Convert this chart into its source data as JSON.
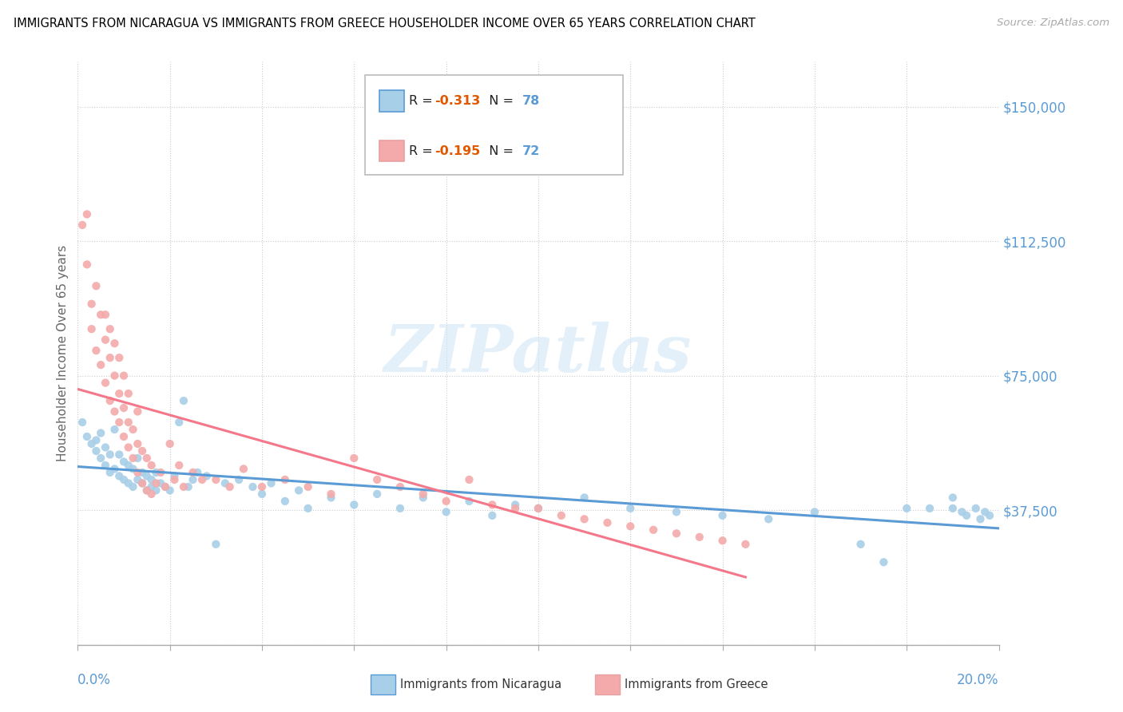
{
  "title": "IMMIGRANTS FROM NICARAGUA VS IMMIGRANTS FROM GREECE HOUSEHOLDER INCOME OVER 65 YEARS CORRELATION CHART",
  "source": "Source: ZipAtlas.com",
  "ylabel": "Householder Income Over 65 years",
  "xlim": [
    0.0,
    0.2
  ],
  "ylim": [
    0,
    162500
  ],
  "ytick_vals": [
    0,
    37500,
    75000,
    112500,
    150000
  ],
  "ytick_labels": [
    "",
    "$37,500",
    "$75,000",
    "$112,500",
    "$150,000"
  ],
  "color_nicaragua": "#a8cfe8",
  "color_greece": "#f4aaaa",
  "color_nicaragua_line": "#5b9bd5",
  "color_greece_line": "#f4778a",
  "color_axis": "#5b9bd5",
  "watermark_text": "ZIPatlas",
  "nicaragua_x": [
    0.001,
    0.002,
    0.003,
    0.004,
    0.004,
    0.005,
    0.005,
    0.006,
    0.006,
    0.007,
    0.007,
    0.008,
    0.008,
    0.009,
    0.009,
    0.01,
    0.01,
    0.011,
    0.011,
    0.012,
    0.012,
    0.013,
    0.013,
    0.014,
    0.014,
    0.015,
    0.015,
    0.016,
    0.016,
    0.017,
    0.017,
    0.018,
    0.019,
    0.02,
    0.021,
    0.022,
    0.023,
    0.024,
    0.025,
    0.026,
    0.028,
    0.03,
    0.032,
    0.035,
    0.038,
    0.04,
    0.042,
    0.045,
    0.048,
    0.05,
    0.055,
    0.06,
    0.065,
    0.07,
    0.075,
    0.08,
    0.085,
    0.09,
    0.095,
    0.1,
    0.11,
    0.12,
    0.13,
    0.14,
    0.15,
    0.16,
    0.17,
    0.175,
    0.18,
    0.185,
    0.19,
    0.19,
    0.192,
    0.193,
    0.195,
    0.196,
    0.197,
    0.198
  ],
  "nicaragua_y": [
    62000,
    58000,
    56000,
    57000,
    54000,
    52000,
    59000,
    50000,
    55000,
    48000,
    53000,
    49000,
    60000,
    47000,
    53000,
    46000,
    51000,
    45000,
    50000,
    44000,
    49000,
    46000,
    52000,
    45000,
    48000,
    43000,
    47000,
    44000,
    46000,
    43000,
    48000,
    45000,
    44000,
    43000,
    47000,
    62000,
    68000,
    44000,
    46000,
    48000,
    47000,
    28000,
    45000,
    46000,
    44000,
    42000,
    45000,
    40000,
    43000,
    38000,
    41000,
    39000,
    42000,
    38000,
    41000,
    37000,
    40000,
    36000,
    39000,
    38000,
    41000,
    38000,
    37000,
    36000,
    35000,
    37000,
    28000,
    23000,
    38000,
    38000,
    41000,
    38000,
    37000,
    36000,
    38000,
    35000,
    37000,
    36000
  ],
  "greece_x": [
    0.001,
    0.002,
    0.002,
    0.003,
    0.003,
    0.004,
    0.004,
    0.005,
    0.005,
    0.006,
    0.006,
    0.006,
    0.007,
    0.007,
    0.007,
    0.008,
    0.008,
    0.008,
    0.009,
    0.009,
    0.009,
    0.01,
    0.01,
    0.01,
    0.011,
    0.011,
    0.011,
    0.012,
    0.012,
    0.013,
    0.013,
    0.013,
    0.014,
    0.014,
    0.015,
    0.015,
    0.016,
    0.016,
    0.017,
    0.018,
    0.019,
    0.02,
    0.021,
    0.022,
    0.023,
    0.025,
    0.027,
    0.03,
    0.033,
    0.036,
    0.04,
    0.045,
    0.05,
    0.055,
    0.06,
    0.065,
    0.07,
    0.075,
    0.08,
    0.085,
    0.09,
    0.095,
    0.1,
    0.105,
    0.11,
    0.115,
    0.12,
    0.125,
    0.13,
    0.135,
    0.14,
    0.145
  ],
  "greece_y": [
    117000,
    120000,
    106000,
    95000,
    88000,
    82000,
    100000,
    78000,
    92000,
    73000,
    85000,
    92000,
    68000,
    80000,
    88000,
    65000,
    75000,
    84000,
    62000,
    70000,
    80000,
    58000,
    66000,
    75000,
    55000,
    62000,
    70000,
    52000,
    60000,
    48000,
    56000,
    65000,
    45000,
    54000,
    43000,
    52000,
    42000,
    50000,
    45000,
    48000,
    44000,
    56000,
    46000,
    50000,
    44000,
    48000,
    46000,
    46000,
    44000,
    49000,
    44000,
    46000,
    44000,
    42000,
    52000,
    46000,
    44000,
    42000,
    40000,
    46000,
    39000,
    38000,
    38000,
    36000,
    35000,
    34000,
    33000,
    32000,
    31000,
    30000,
    29000,
    28000
  ]
}
